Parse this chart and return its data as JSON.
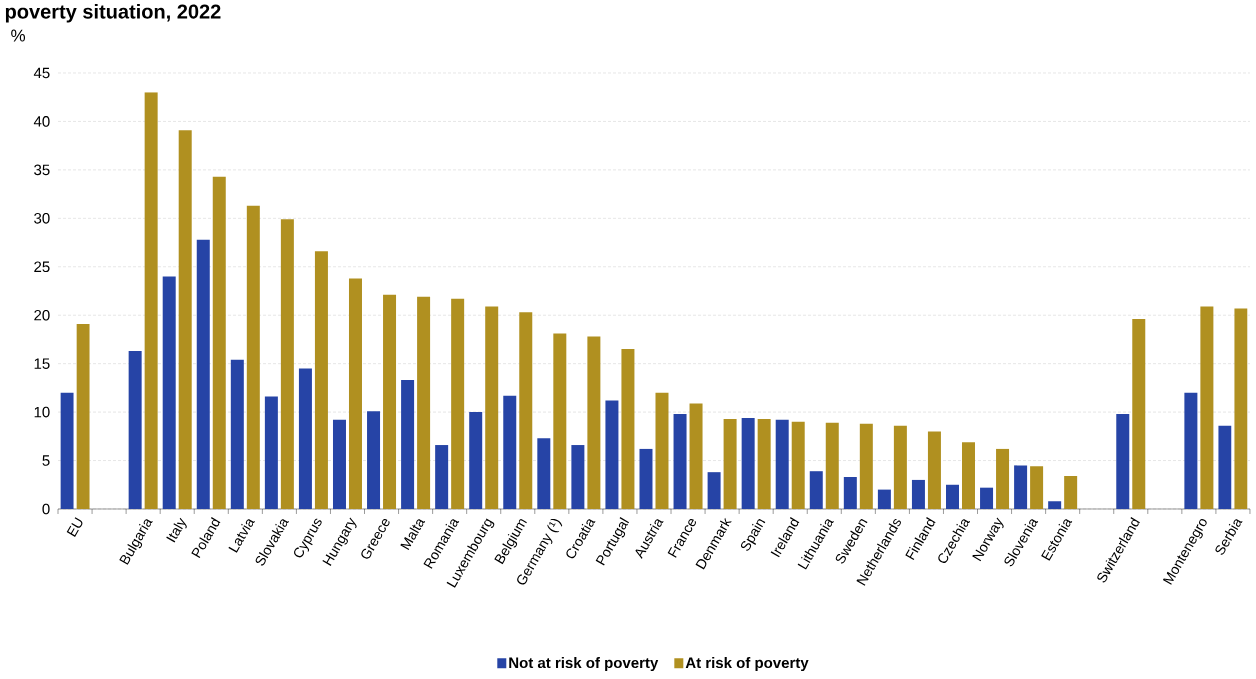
{
  "chart_data": {
    "type": "bar",
    "title": "poverty situation, 2022",
    "ylabel": "%",
    "categories": [
      "EU",
      null,
      "Bulgaria",
      "Italy",
      "Poland",
      "Latvia",
      "Slovakia",
      "Cyprus",
      "Hungary",
      "Greece",
      "Malta",
      "Romania",
      "Luxembourg",
      "Belgium",
      "Germany (¹)",
      "Croatia",
      "Portugal",
      "Austria",
      "France",
      "Denmark",
      "Spain",
      "Ireland",
      "Lithuania",
      "Sweden",
      "Netherlands",
      "Finland",
      "Czechia",
      "Norway",
      "Slovenia",
      "Estonia",
      null,
      "Switzerland",
      null,
      "Montenegro",
      "Serbia"
    ],
    "series": [
      {
        "name": "Not at risk of poverty",
        "color": "#2644a6",
        "values": [
          12.0,
          null,
          16.3,
          24.0,
          27.8,
          15.4,
          11.6,
          14.5,
          9.2,
          10.1,
          13.3,
          6.6,
          10.0,
          11.7,
          7.3,
          6.6,
          11.2,
          6.2,
          9.8,
          3.8,
          9.4,
          9.2,
          3.9,
          3.3,
          2.0,
          3.0,
          2.5,
          2.2,
          4.5,
          0.8,
          null,
          9.8,
          null,
          12.0,
          8.6
        ]
      },
      {
        "name": "At risk of poverty",
        "color": "#b09020",
        "values": [
          19.1,
          null,
          43.0,
          39.1,
          34.3,
          31.3,
          29.9,
          26.6,
          23.8,
          22.1,
          21.9,
          21.7,
          20.9,
          20.3,
          18.1,
          17.8,
          16.5,
          12.0,
          10.9,
          9.3,
          9.3,
          9.0,
          8.9,
          8.8,
          8.6,
          8.0,
          6.9,
          6.2,
          4.4,
          3.4,
          null,
          19.6,
          null,
          20.9,
          20.7
        ]
      }
    ],
    "ylim": [
      0,
      45
    ],
    "yticks": [
      0,
      5,
      10,
      15,
      20,
      25,
      30,
      35,
      40,
      45
    ],
    "grid": "y",
    "legend": "bottom"
  }
}
